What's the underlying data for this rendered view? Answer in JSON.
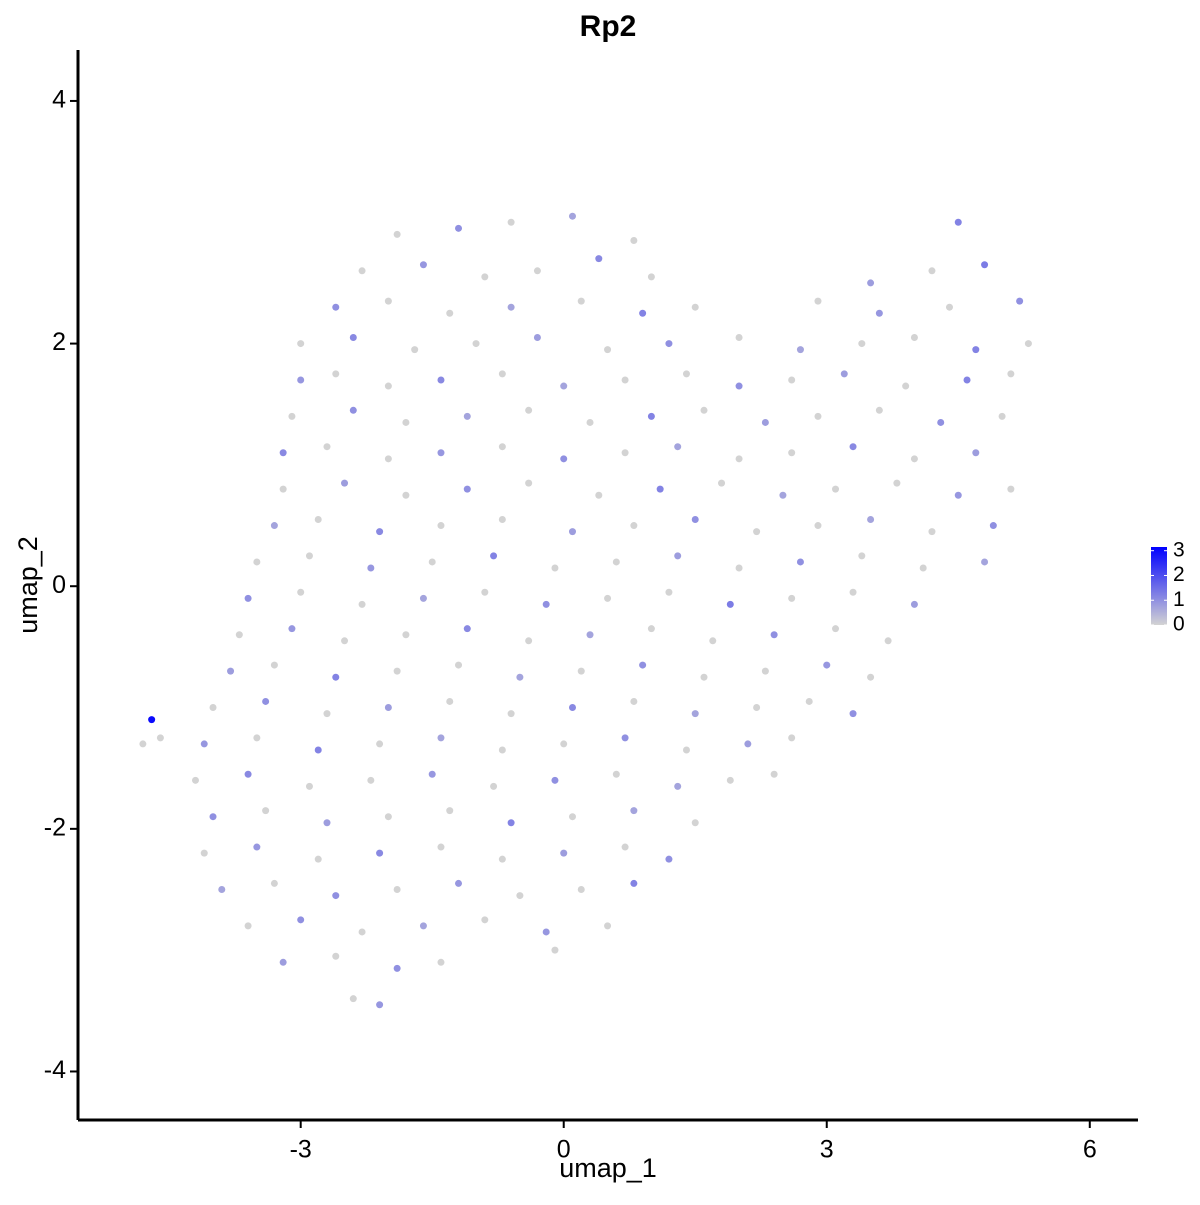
{
  "chart_data": {
    "type": "scatter",
    "title": "Rp2",
    "x_label": "umap_1",
    "y_label": "umap_2",
    "xlim": [
      -5.54,
      6.55
    ],
    "ylim": [
      -4.4,
      4.42
    ],
    "xticks": [
      -3,
      0,
      3,
      6
    ],
    "yticks": [
      -4,
      -2,
      0,
      2,
      4
    ],
    "colorbar": {
      "low_color": "#d3d3d3",
      "high_color": "#0000ff",
      "lim": [
        0,
        3.15
      ],
      "ticks": [
        0,
        1,
        2,
        3
      ]
    },
    "x": [
      -1.9,
      -1.2,
      -0.6,
      0.1,
      0.8,
      4.5,
      -2.3,
      -1.6,
      -0.9,
      -0.3,
      0.4,
      1.0,
      3.5,
      4.2,
      4.8,
      -2.6,
      -2.0,
      -1.3,
      -0.6,
      0.2,
      0.9,
      1.5,
      2.9,
      3.6,
      4.4,
      5.2,
      -3.0,
      -2.4,
      -1.7,
      -1.0,
      -0.3,
      0.5,
      1.2,
      2.0,
      2.7,
      3.4,
      4.0,
      4.7,
      5.3,
      -3.0,
      -2.6,
      -2.0,
      -1.4,
      -0.7,
      0.0,
      0.7,
      1.4,
      2.0,
      2.6,
      3.2,
      3.9,
      4.6,
      5.1,
      -3.1,
      -2.4,
      -1.8,
      -1.1,
      -0.4,
      0.3,
      1.0,
      1.6,
      2.3,
      2.9,
      3.6,
      4.3,
      5.0,
      -3.2,
      -2.7,
      -2.0,
      -1.4,
      -0.7,
      0.0,
      0.7,
      1.3,
      2.0,
      2.6,
      3.3,
      4.0,
      4.7,
      -3.2,
      -2.5,
      -1.8,
      -1.1,
      -0.4,
      0.4,
      1.1,
      1.8,
      2.5,
      3.1,
      3.8,
      4.5,
      5.1,
      -3.3,
      -2.8,
      -2.1,
      -1.4,
      -0.7,
      0.1,
      0.8,
      1.5,
      2.2,
      2.9,
      3.5,
      4.2,
      4.9,
      -3.5,
      -2.9,
      -2.2,
      -1.5,
      -0.8,
      -0.1,
      0.6,
      1.3,
      2.0,
      2.7,
      3.4,
      4.1,
      4.8,
      -3.6,
      -3.0,
      -2.3,
      -1.6,
      -0.9,
      -0.2,
      0.5,
      1.2,
      1.9,
      2.6,
      3.3,
      4.0,
      -3.7,
      -3.1,
      -2.5,
      -1.8,
      -1.1,
      -0.4,
      0.3,
      1.0,
      1.7,
      2.4,
      3.1,
      3.7,
      -3.8,
      -3.3,
      -2.6,
      -1.9,
      -1.2,
      -0.5,
      0.2,
      0.9,
      1.6,
      2.3,
      3.0,
      3.5,
      -4.0,
      -3.4,
      -2.7,
      -2.0,
      -1.3,
      -0.6,
      0.1,
      0.8,
      1.5,
      2.2,
      2.8,
      3.3,
      -4.7,
      -4.6,
      -4.8,
      -4.1,
      -3.5,
      -2.8,
      -2.1,
      -1.4,
      -0.7,
      0.0,
      0.7,
      1.4,
      2.1,
      2.6,
      -4.2,
      -3.6,
      -2.9,
      -2.2,
      -1.5,
      -0.8,
      -0.1,
      0.6,
      1.3,
      1.9,
      2.4,
      -4.0,
      -3.4,
      -2.7,
      -2.0,
      -1.3,
      -0.6,
      0.1,
      0.8,
      1.5,
      -4.1,
      -3.5,
      -2.8,
      -2.1,
      -1.4,
      -0.7,
      0.0,
      0.7,
      1.2,
      -3.9,
      -3.3,
      -2.6,
      -1.9,
      -1.2,
      -0.5,
      0.2,
      0.8,
      -3.6,
      -3.0,
      -2.3,
      -1.6,
      -0.9,
      -0.2,
      0.5,
      -3.2,
      -2.6,
      -1.9,
      -1.4,
      -0.1,
      -2.4,
      -2.1
    ],
    "y": [
      2.9,
      2.95,
      3.0,
      3.05,
      2.85,
      3.0,
      2.6,
      2.65,
      2.55,
      2.6,
      2.7,
      2.55,
      2.5,
      2.6,
      2.65,
      2.3,
      2.35,
      2.25,
      2.3,
      2.35,
      2.25,
      2.3,
      2.35,
      2.25,
      2.3,
      2.35,
      2.0,
      2.05,
      1.95,
      2.0,
      2.05,
      1.95,
      2.0,
      2.05,
      1.95,
      2.0,
      2.05,
      1.95,
      2.0,
      1.7,
      1.75,
      1.65,
      1.7,
      1.75,
      1.65,
      1.7,
      1.75,
      1.65,
      1.7,
      1.75,
      1.65,
      1.7,
      1.75,
      1.4,
      1.45,
      1.35,
      1.4,
      1.45,
      1.35,
      1.4,
      1.45,
      1.35,
      1.4,
      1.45,
      1.35,
      1.4,
      1.1,
      1.15,
      1.05,
      1.1,
      1.15,
      1.05,
      1.1,
      1.15,
      1.05,
      1.1,
      1.15,
      1.05,
      1.1,
      0.8,
      0.85,
      0.75,
      0.8,
      0.85,
      0.75,
      0.8,
      0.85,
      0.75,
      0.8,
      0.85,
      0.75,
      0.8,
      0.5,
      0.55,
      0.45,
      0.5,
      0.55,
      0.45,
      0.5,
      0.55,
      0.45,
      0.5,
      0.55,
      0.45,
      0.5,
      0.2,
      0.25,
      0.15,
      0.2,
      0.25,
      0.15,
      0.2,
      0.25,
      0.15,
      0.2,
      0.25,
      0.15,
      0.2,
      -0.1,
      -0.05,
      -0.15,
      -0.1,
      -0.05,
      -0.15,
      -0.1,
      -0.05,
      -0.15,
      -0.1,
      -0.05,
      -0.15,
      -0.4,
      -0.35,
      -0.45,
      -0.4,
      -0.35,
      -0.45,
      -0.4,
      -0.35,
      -0.45,
      -0.4,
      -0.35,
      -0.45,
      -0.7,
      -0.65,
      -0.75,
      -0.7,
      -0.65,
      -0.75,
      -0.7,
      -0.65,
      -0.75,
      -0.7,
      -0.65,
      -0.75,
      -1.0,
      -0.95,
      -1.05,
      -1.0,
      -0.95,
      -1.05,
      -1.0,
      -0.95,
      -1.05,
      -1.0,
      -0.95,
      -1.05,
      -1.1,
      -1.25,
      -1.3,
      -1.3,
      -1.25,
      -1.35,
      -1.3,
      -1.25,
      -1.35,
      -1.3,
      -1.25,
      -1.35,
      -1.3,
      -1.25,
      -1.6,
      -1.55,
      -1.65,
      -1.6,
      -1.55,
      -1.65,
      -1.6,
      -1.55,
      -1.65,
      -1.6,
      -1.55,
      -1.9,
      -1.85,
      -1.95,
      -1.9,
      -1.85,
      -1.95,
      -1.9,
      -1.85,
      -1.95,
      -2.2,
      -2.15,
      -2.25,
      -2.2,
      -2.15,
      -2.25,
      -2.2,
      -2.15,
      -2.25,
      -2.5,
      -2.45,
      -2.55,
      -2.5,
      -2.45,
      -2.55,
      -2.5,
      -2.45,
      -2.8,
      -2.75,
      -2.85,
      -2.8,
      -2.75,
      -2.85,
      -2.8,
      -3.1,
      -3.05,
      -3.15,
      -3.1,
      -3.0,
      -3.4,
      -3.45
    ],
    "values": [
      0,
      1,
      0,
      0.7,
      0,
      1.2,
      0,
      0.9,
      0,
      0,
      1.1,
      0,
      0.8,
      0,
      1.3,
      1,
      0,
      0,
      0.7,
      0,
      1.2,
      0,
      0,
      0.9,
      0,
      1,
      0,
      1.1,
      0,
      0,
      0.8,
      0,
      1,
      0,
      0.7,
      0,
      0,
      1.2,
      0,
      0.9,
      0,
      0,
      1.1,
      0,
      0.7,
      0,
      0,
      1,
      0,
      0.8,
      0,
      1.2,
      0,
      0,
      1,
      0,
      0.7,
      0,
      0,
      1.2,
      0,
      0.8,
      0,
      0,
      1,
      0,
      1.1,
      0,
      0,
      0.9,
      0,
      1,
      0,
      0.7,
      0,
      0,
      1.1,
      0,
      0.8,
      0,
      0.8,
      0,
      1,
      0,
      0,
      1.2,
      0,
      0.7,
      0,
      0,
      0.9,
      0,
      0.7,
      0,
      1.1,
      0,
      0,
      0.8,
      0,
      1,
      0,
      0,
      0.7,
      0,
      1,
      0,
      0,
      0.9,
      0,
      1.2,
      0,
      0,
      0.8,
      0,
      1,
      0,
      0,
      0.7,
      1,
      0,
      0,
      0.7,
      0,
      1,
      0,
      0,
      1.3,
      0,
      0,
      0.8,
      0,
      0.9,
      0,
      0,
      1.1,
      0,
      0.7,
      0,
      0,
      1,
      0,
      0,
      0.8,
      0,
      1.2,
      0,
      0,
      0.7,
      0,
      1,
      0,
      0,
      0.9,
      0,
      0,
      1,
      0,
      0.8,
      0,
      0,
      1.1,
      0,
      0.7,
      0,
      0,
      1,
      3,
      0,
      0,
      0.9,
      0,
      1.2,
      0,
      0.7,
      0,
      0,
      1,
      0,
      0.8,
      0,
      0,
      1.1,
      0,
      0,
      0.9,
      0,
      1,
      0,
      0.7,
      0,
      0,
      1,
      0,
      0.8,
      0,
      0,
      1.2,
      0,
      0.7,
      0,
      0,
      0.9,
      0,
      1.1,
      0,
      0,
      0.8,
      0,
      1,
      0.7,
      0,
      1,
      0,
      0.9,
      0,
      0,
      1.2,
      0,
      1,
      0,
      0.7,
      0,
      0.9,
      0,
      0.8,
      0,
      1,
      0,
      0,
      0,
      0.9
    ]
  }
}
